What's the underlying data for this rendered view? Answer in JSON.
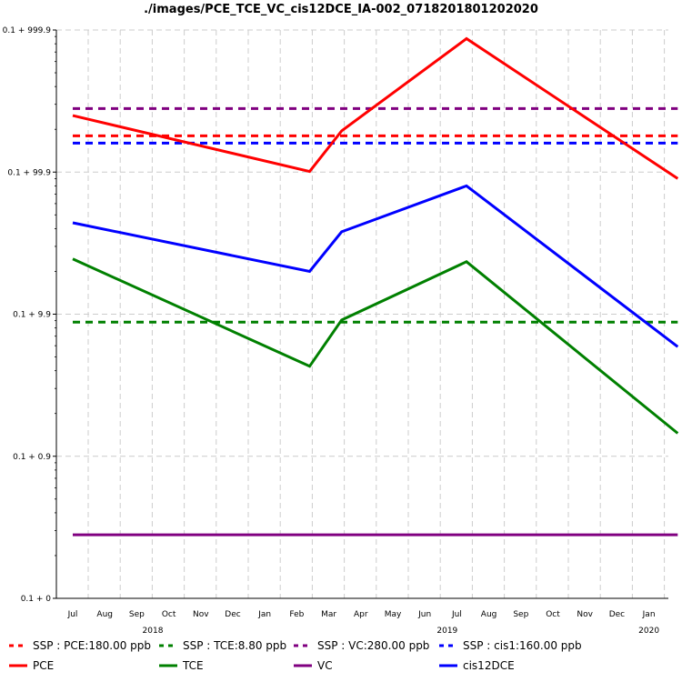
{
  "chart_data": {
    "type": "line",
    "title": "./images/PCE_TCE_VC_cis12DCE_IA-002_0718201801202020",
    "x_ticks": [
      "Jul",
      "Aug",
      "Sep",
      "Oct",
      "Nov",
      "Dec",
      "Jan",
      "Feb",
      "Mar",
      "Apr",
      "May",
      "Jun",
      "Jul",
      "Aug",
      "Sep",
      "Oct",
      "Nov",
      "Dec",
      "Jan"
    ],
    "year_labels": [
      {
        "label": "2018",
        "month_index": 2.5
      },
      {
        "label": "2019",
        "month_index": 11.7
      },
      {
        "label": "2020",
        "month_index": 18.0
      }
    ],
    "y_ticks": [
      {
        "label": "0.1 + 999.9",
        "log_value": 3
      },
      {
        "label": "0.1 + 99.9",
        "log_value": 2
      },
      {
        "label": "0.1 + 9.9",
        "log_value": 1
      },
      {
        "label": "0.1 + 0.9",
        "log_value": 0
      },
      {
        "label": "0.1 + 0",
        "log_value": -1
      }
    ],
    "y_scale": "log",
    "ylim": [
      0.1,
      1000
    ],
    "grid": true,
    "legend_position": "bottom",
    "series": [
      {
        "name": "PCE",
        "color": "#ff0000",
        "style": "solid",
        "x": [
          0,
          7.4,
          8.4,
          12.3,
          18.9
        ],
        "y": [
          250,
          101,
          195,
          870,
          90
        ]
      },
      {
        "name": "TCE",
        "color": "#008000",
        "style": "solid",
        "x": [
          0,
          7.4,
          8.4,
          12.3,
          18.9
        ],
        "y": [
          24.5,
          4.3,
          9.1,
          23.4,
          1.45
        ]
      },
      {
        "name": "VC",
        "color": "#800080",
        "style": "solid",
        "x": [
          0,
          18.9
        ],
        "y": [
          0.28,
          0.28
        ]
      },
      {
        "name": "cis12DCE",
        "color": "#0000ff",
        "style": "solid",
        "x": [
          0,
          7.4,
          8.4,
          12.3,
          18.9
        ],
        "y": [
          44,
          20,
          38,
          80,
          5.9
        ]
      },
      {
        "name": "SSP : PCE:180.00 ppb",
        "color": "#ff0000",
        "style": "dashed",
        "x": [
          0,
          18.9
        ],
        "y": [
          180,
          180
        ]
      },
      {
        "name": "SSP : TCE:8.80 ppb",
        "color": "#008000",
        "style": "dashed",
        "x": [
          0,
          18.9
        ],
        "y": [
          8.8,
          8.8
        ]
      },
      {
        "name": "SSP : VC:280.00 ppb",
        "color": "#800080",
        "style": "dashed",
        "x": [
          0,
          18.9
        ],
        "y": [
          280,
          280
        ]
      },
      {
        "name": "SSP : cis1:160.00 ppb",
        "color": "#0000ff",
        "style": "dashed",
        "x": [
          0,
          18.9
        ],
        "y": [
          160,
          160
        ]
      }
    ],
    "legend": [
      {
        "label": "SSP : PCE:180.00 ppb",
        "color": "#ff0000",
        "style": "dashed"
      },
      {
        "label": "SSP : TCE:8.80 ppb",
        "color": "#008000",
        "style": "dashed"
      },
      {
        "label": "SSP : VC:280.00 ppb",
        "color": "#800080",
        "style": "dashed"
      },
      {
        "label": "SSP : cis1:160.00 ppb",
        "color": "#0000ff",
        "style": "dashed"
      },
      {
        "label": "PCE",
        "color": "#ff0000",
        "style": "solid"
      },
      {
        "label": "TCE",
        "color": "#008000",
        "style": "solid"
      },
      {
        "label": "VC",
        "color": "#800080",
        "style": "solid"
      },
      {
        "label": "cis12DCE",
        "color": "#0000ff",
        "style": "solid"
      }
    ]
  }
}
